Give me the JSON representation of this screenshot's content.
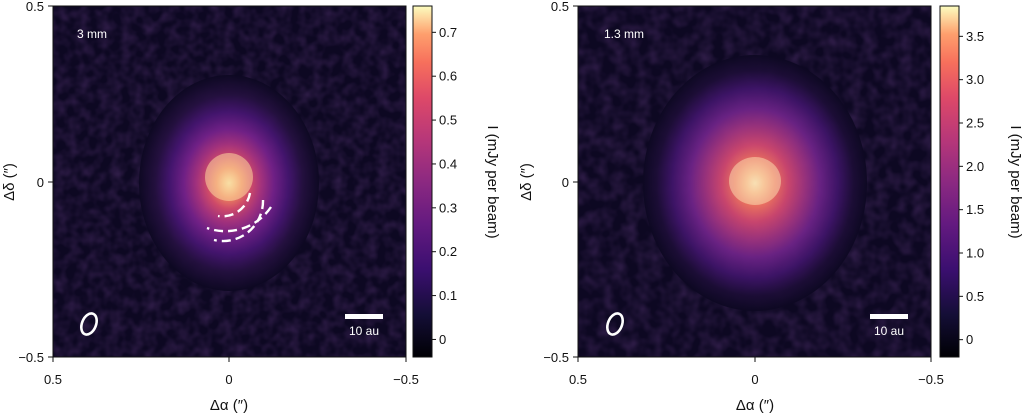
{
  "panels": [
    {
      "id": "left",
      "wavelength_label": "3 mm",
      "scale_bar_label": "10 au",
      "x_axis_label": "Δα (″)",
      "y_axis_label": "Δδ (″)",
      "x_ticks": [
        "0.5",
        "0",
        "−0.5"
      ],
      "y_ticks": [
        "0.5",
        "0",
        "−0.5"
      ],
      "colorbar": {
        "label": "I (mJy per beam)",
        "ticks": [
          "0.7",
          "0.6",
          "0.5",
          "0.4",
          "0.3",
          "0.2",
          "0.1",
          "0"
        ],
        "tick_values": [
          0.7,
          0.6,
          0.5,
          0.4,
          0.3,
          0.2,
          0.1,
          0.0
        ],
        "vmin": -0.04,
        "vmax": 0.76
      },
      "has_dashed_arcs": true
    },
    {
      "id": "right",
      "wavelength_label": "1.3 mm",
      "scale_bar_label": "10 au",
      "x_axis_label": "Δα (″)",
      "y_axis_label": "Δδ (″)",
      "x_ticks": [
        "0.5",
        "0",
        "−0.5"
      ],
      "y_ticks": [
        "0.5",
        "0",
        "−0.5"
      ],
      "colorbar": {
        "label": "I (mJy per beam)",
        "ticks": [
          "3.5",
          "3.0",
          "2.5",
          "2.0",
          "1.5",
          "1.0",
          "0.5",
          "0"
        ],
        "tick_values": [
          3.5,
          3.0,
          2.5,
          2.0,
          1.5,
          1.0,
          0.5,
          0.0
        ],
        "vmin": -0.2,
        "vmax": 3.85
      },
      "has_dashed_arcs": false
    }
  ],
  "colors": {
    "map_bg": "#0d0822",
    "white": "#ffffff"
  }
}
